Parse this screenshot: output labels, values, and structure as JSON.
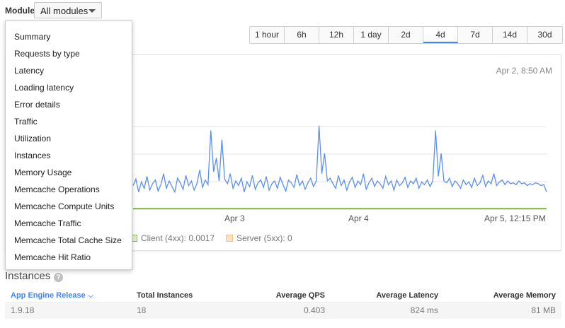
{
  "module": {
    "label": "Module",
    "selected": "All modules"
  },
  "time_ranges": [
    {
      "label": "1 hour",
      "active": false
    },
    {
      "label": "6h",
      "active": false
    },
    {
      "label": "12h",
      "active": false
    },
    {
      "label": "1 day",
      "active": false
    },
    {
      "label": "2d",
      "active": false
    },
    {
      "label": "4d",
      "active": true
    },
    {
      "label": "7d",
      "active": false
    },
    {
      "label": "14d",
      "active": false
    },
    {
      "label": "30d",
      "active": false
    }
  ],
  "dropdown": {
    "items": [
      "Summary",
      "Requests by type",
      "Latency",
      "Loading latency",
      "Error details",
      "Traffic",
      "Utilization",
      "Instances",
      "Memory Usage",
      "Memcache Operations",
      "Memcache Compute Units",
      "Memcache Traffic",
      "Memcache Total Cache Size",
      "Memcache Hit Ratio"
    ]
  },
  "chart": {
    "timestamp": "Apr 2, 8:50 AM",
    "x_labels": [
      "Apr 3",
      "Apr 4",
      "Apr 5, 12:15 PM"
    ],
    "legend": {
      "client": "Client (4xx): 0.0017",
      "server": "Server (5xx): 0"
    },
    "colors": {
      "series": "#5b8ff0",
      "client": "#8bc34a",
      "server": "#f5c080"
    }
  },
  "chart_data": {
    "type": "line",
    "x_ticks": [
      "Apr 3",
      "Apr 4",
      "Apr 5, 12:15 PM"
    ],
    "series": [
      {
        "values": [
          0.25,
          0.32,
          0.18,
          0.29,
          0.22,
          0.35,
          0.2,
          0.27,
          0.31,
          0.19,
          0.26,
          0.38,
          0.22,
          0.3,
          0.24,
          0.18,
          0.33,
          0.28,
          0.21,
          0.36,
          0.25,
          0.3,
          0.2,
          0.27,
          0.42,
          0.23,
          0.31,
          0.26,
          0.85,
          0.4,
          0.55,
          0.3,
          0.75,
          0.32,
          0.27,
          0.38,
          0.22,
          0.3,
          0.25,
          0.33,
          0.18,
          0.29,
          0.24,
          0.36,
          0.21,
          0.28,
          0.31,
          0.23,
          0.35,
          0.2,
          0.27,
          0.3,
          0.22,
          0.34,
          0.26,
          0.19,
          0.31,
          0.28,
          0.23,
          0.37,
          0.25,
          0.3,
          0.21,
          0.28,
          0.33,
          0.24,
          0.3,
          0.9,
          0.38,
          0.6,
          0.3,
          0.33,
          0.27,
          0.22,
          0.36,
          0.25,
          0.31,
          0.2,
          0.29,
          0.34,
          0.23,
          0.3,
          0.26,
          0.38,
          0.21,
          0.28,
          0.33,
          0.24,
          0.3,
          0.27,
          0.22,
          0.35,
          0.26,
          0.3,
          0.2,
          0.31,
          0.25,
          0.28,
          0.34,
          0.23,
          0.3,
          0.27,
          0.33,
          0.22,
          0.29,
          0.26,
          0.31,
          0.24,
          0.3,
          0.85,
          0.35,
          0.6,
          0.3,
          0.28,
          0.33,
          0.24,
          0.3,
          0.27,
          0.22,
          0.31,
          0.26,
          0.29,
          0.23,
          0.33,
          0.25,
          0.28,
          0.36,
          0.24,
          0.3,
          0.27,
          0.38,
          0.25,
          0.29,
          0.31,
          0.26,
          0.3,
          0.27,
          0.28,
          0.26,
          0.3,
          0.27,
          0.28,
          0.25,
          0.27,
          0.26,
          0.28,
          0.27,
          0.25,
          0.26,
          0.18
        ]
      },
      {
        "name": "Client (4xx): 0.0017",
        "values": [
          0.01
        ]
      },
      {
        "name": "Server (5xx): 0",
        "values": [
          0
        ]
      }
    ]
  },
  "instances": {
    "title": "Instances",
    "help": "?",
    "columns": [
      "App Engine Release",
      "Total Instances",
      "Average QPS",
      "Average Latency",
      "Average Memory"
    ],
    "rows": [
      [
        "1.9.18",
        "18",
        "0.403",
        "824 ms",
        "81 MB"
      ]
    ]
  }
}
